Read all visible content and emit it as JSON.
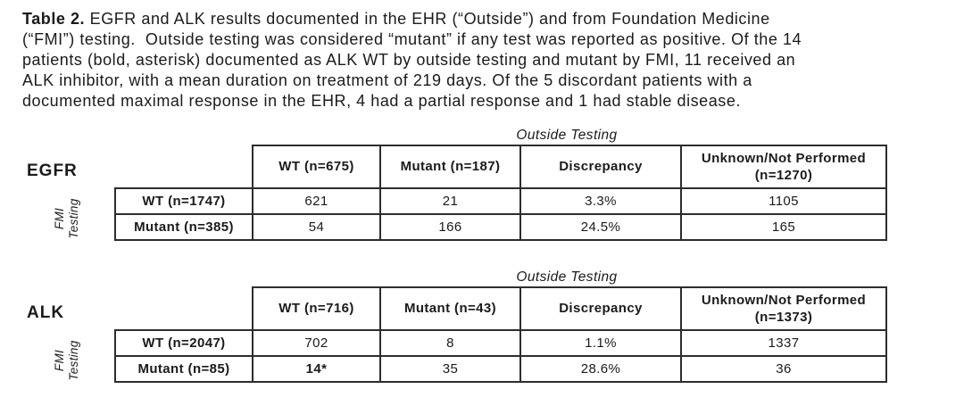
{
  "caption": {
    "label": "Table 2.",
    "text": "EGFR and ALK results documented in the EHR (“Outside”) and from Foundation Medicine\n(“FMI”) testing.  Outside testing was considered “mutant” if any test was reported as positive. Of the 14\npatients (bold, asterisk) documented as ALK WT by outside testing and mutant by FMI, 11 received an\nALK inhibitor, with a mean duration on treatment of 219 days. Of the 5 discordant patients with a\ndocumented maximal response in the EHR, 4 had a partial response and 1 had stable disease."
  },
  "tables": [
    {
      "gene": "EGFR",
      "outside_label": "Outside Testing",
      "fmi_label": "FMI\nTesting",
      "col_headers": [
        "WT (n=675)",
        "Mutant (n=187)",
        "Discrepancy",
        "Unknown/Not Performed\n(n=1270)"
      ],
      "rows": [
        {
          "header": "WT (n=1747)",
          "cells": [
            "621",
            "21",
            "3.3%",
            "1105"
          ]
        },
        {
          "header": "Mutant (n=385)",
          "cells": [
            "54",
            "166",
            "24.5%",
            "165"
          ]
        }
      ]
    },
    {
      "gene": "ALK",
      "outside_label": "Outside Testing",
      "fmi_label": "FMI\nTesting",
      "col_headers": [
        "WT (n=716)",
        "Mutant (n=43)",
        "Discrepancy",
        "Unknown/Not Performed\n(n=1373)"
      ],
      "rows": [
        {
          "header": "WT (n=2047)",
          "cells": [
            "702",
            "8",
            "1.1%",
            "1337"
          ]
        },
        {
          "header": "Mutant (n=85)",
          "cells": [
            "14*",
            "35",
            "28.6%",
            "36"
          ]
        }
      ]
    }
  ],
  "colors": {
    "text": "#1b1b1b",
    "border": "#2d2d2d",
    "background": "#ffffff"
  }
}
